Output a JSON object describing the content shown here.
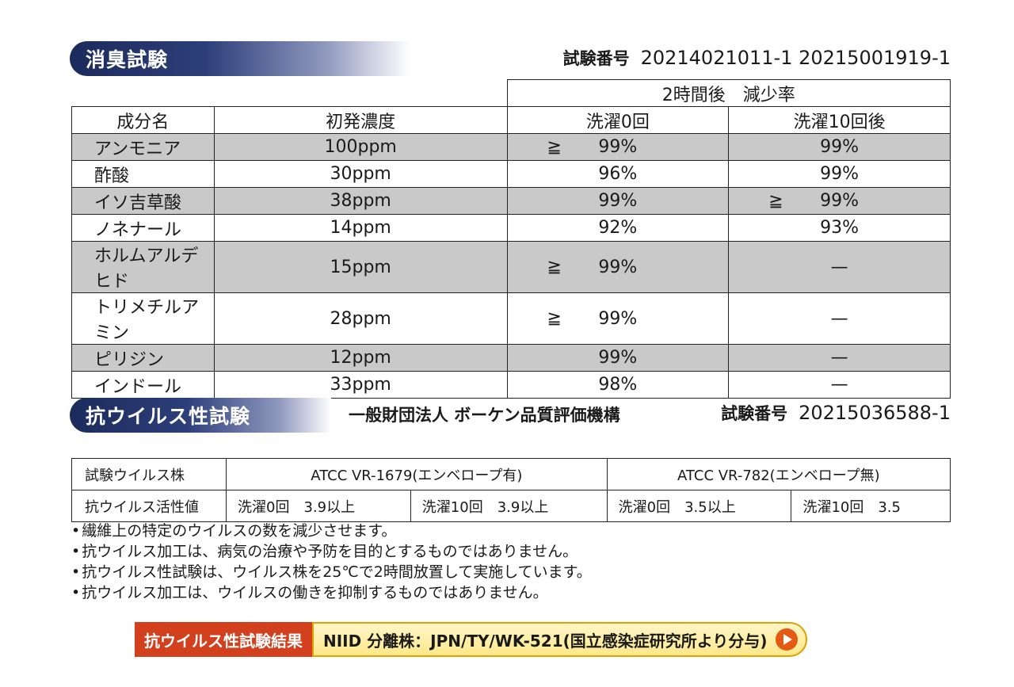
{
  "deodorization": {
    "title": "消臭試験",
    "test_number_label": "試験番号",
    "test_numbers": "20214021011-1 20215001919-1",
    "group_header": "2時間後　減少率",
    "columns": [
      "成分名",
      "初発濃度",
      "洗濯0回",
      "洗濯10回後"
    ],
    "rows": [
      {
        "name": "アンモニア",
        "conc": "100ppm",
        "w0_ge": "≧",
        "w0": "99%",
        "w10_ge": "",
        "w10": "99%"
      },
      {
        "name": "酢酸",
        "conc": "30ppm",
        "w0_ge": "",
        "w0": "96%",
        "w10_ge": "",
        "w10": "99%"
      },
      {
        "name": "イソ吉草酸",
        "conc": "38ppm",
        "w0_ge": "",
        "w0": "99%",
        "w10_ge": "≧",
        "w10": "99%"
      },
      {
        "name": "ノネナール",
        "conc": "14ppm",
        "w0_ge": "",
        "w0": "92%",
        "w10_ge": "",
        "w10": "93%"
      },
      {
        "name": "ホルムアルデヒド",
        "conc": "15ppm",
        "w0_ge": "≧",
        "w0": "99%",
        "w10_ge": "",
        "w10": "—"
      },
      {
        "name": "トリメチルアミン",
        "conc": "28ppm",
        "w0_ge": "≧",
        "w0": "99%",
        "w10_ge": "",
        "w10": "—"
      },
      {
        "name": "ピリジン",
        "conc": "12ppm",
        "w0_ge": "",
        "w0": "99%",
        "w10_ge": "",
        "w10": "—"
      },
      {
        "name": "インドール",
        "conc": "33ppm",
        "w0_ge": "",
        "w0": "98%",
        "w10_ge": "",
        "w10": "—"
      }
    ]
  },
  "antiviral": {
    "title": "抗ウイルス性試験",
    "organization": "一般財団法人 ボーケン品質評価機構",
    "test_number_label": "試験番号",
    "test_number": "20215036588-1",
    "strain_label": "試験ウイルス株",
    "activity_label": "抗ウイルス活性値",
    "strains": [
      "ATCC VR-1679(エンベロープ有)",
      "ATCC VR-782(エンベロープ無)"
    ],
    "values": [
      "洗濯0回　3.9以上",
      "洗濯10回　3.9以上",
      "洗濯0回　3.5以上",
      "洗濯10回　3.5"
    ]
  },
  "notes": [
    "繊維上の特定のウイルスの数を減少させます。",
    "抗ウイルス加工は、病気の治療や予防を目的とするものではありません。",
    "抗ウイルス性試験は、ウイルス株を25℃で2時間放置して実施しています。",
    "抗ウイルス加工は、ウイルスの働きを抑制するものではありません。"
  ],
  "banner": {
    "label": "抗ウイルス性試験結果",
    "text": "NIID 分離株：JPN/TY/WK-521(国立感染症研究所より分与)",
    "icon": "play-arrow-icon"
  }
}
